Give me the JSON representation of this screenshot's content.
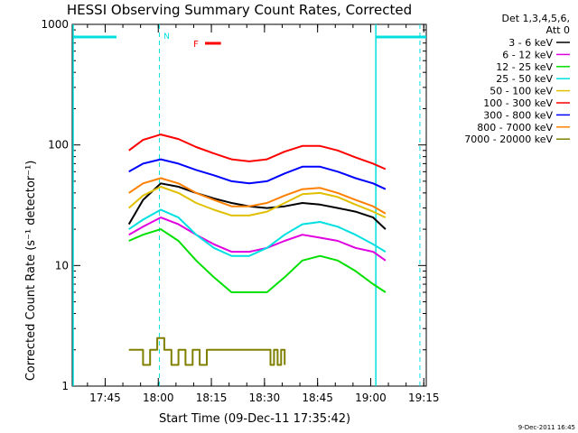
{
  "chart_data": {
    "type": "line",
    "title": "HESSI Observing Summary Count Rates, Corrected",
    "xlabel": "Start Time (09-Dec-11 17:35:42)",
    "ylabel": "Corrected Count Rate (s⁻¹ detector⁻¹)",
    "y_scale": "log",
    "ylim": [
      1,
      1000
    ],
    "x_unit": "minutes after 17:35:42",
    "xlim": [
      0,
      100
    ],
    "x_tick_labels": [
      "17:45",
      "18:00",
      "18:15",
      "18:30",
      "18:45",
      "19:00",
      "19:15"
    ],
    "x_tick_minutes": [
      9.3,
      24.3,
      39.3,
      54.3,
      69.3,
      84.3,
      99.3
    ],
    "y_tick_labels": [
      "1",
      "10",
      "100",
      "1000"
    ],
    "y_ticks": [
      1,
      10,
      100,
      1000
    ],
    "legend": {
      "header": [
        "Det 1,3,4,5,6,",
        "Att 0"
      ],
      "placement": "right"
    },
    "series": [
      {
        "name": "3 - 6 keV",
        "color": "#000000",
        "x": [
          16,
          20,
          25,
          30,
          35,
          40,
          45,
          50,
          55,
          60,
          65,
          70,
          75,
          80,
          85,
          88.5
        ],
        "values": [
          22,
          35,
          48,
          45,
          40,
          36,
          33,
          31,
          30,
          31,
          33,
          32,
          30,
          28,
          25,
          20
        ]
      },
      {
        "name": "6 - 12 keV",
        "color": "#e000e0",
        "x": [
          16,
          20,
          25,
          30,
          35,
          40,
          45,
          50,
          55,
          60,
          65,
          70,
          75,
          80,
          85,
          88.5
        ],
        "values": [
          18,
          21,
          25,
          22,
          18,
          15,
          13,
          13,
          14,
          16,
          18,
          17,
          16,
          14,
          13,
          11
        ]
      },
      {
        "name": "12 - 25 keV",
        "color": "#00e000",
        "x": [
          16,
          20,
          25,
          30,
          35,
          40,
          45,
          50,
          55,
          60,
          65,
          70,
          75,
          80,
          85,
          88.5
        ],
        "values": [
          16,
          18,
          20,
          16,
          11,
          8,
          6,
          6,
          6,
          8,
          11,
          12,
          11,
          9,
          7,
          6
        ]
      },
      {
        "name": "25 - 50 keV",
        "color": "#00e0e0",
        "x": [
          16,
          20,
          25,
          30,
          35,
          40,
          45,
          50,
          55,
          60,
          65,
          70,
          75,
          80,
          85,
          88.5
        ],
        "values": [
          20,
          24,
          29,
          25,
          18,
          14,
          12,
          12,
          14,
          18,
          22,
          23,
          21,
          18,
          15,
          13
        ]
      },
      {
        "name": "50 - 100 keV",
        "color": "#e0c000",
        "x": [
          16,
          20,
          25,
          30,
          35,
          40,
          45,
          50,
          55,
          60,
          65,
          70,
          75,
          80,
          85,
          88.5
        ],
        "values": [
          30,
          38,
          45,
          40,
          33,
          29,
          26,
          26,
          28,
          33,
          39,
          40,
          37,
          32,
          28,
          25
        ]
      },
      {
        "name": "100 - 300 keV",
        "color": "#ff0000",
        "x": [
          16,
          20,
          25,
          30,
          35,
          40,
          45,
          50,
          55,
          60,
          65,
          70,
          75,
          80,
          85,
          88.5
        ],
        "values": [
          90,
          110,
          122,
          112,
          96,
          85,
          76,
          73,
          76,
          88,
          98,
          98,
          90,
          79,
          70,
          63
        ]
      },
      {
        "name": "300 - 800 keV",
        "color": "#0000ff",
        "x": [
          16,
          20,
          25,
          30,
          35,
          40,
          45,
          50,
          55,
          60,
          65,
          70,
          75,
          80,
          85,
          88.5
        ],
        "values": [
          60,
          70,
          76,
          70,
          62,
          56,
          50,
          48,
          50,
          58,
          66,
          66,
          60,
          53,
          48,
          43
        ]
      },
      {
        "name": "800 - 7000 keV",
        "color": "#ff8000",
        "x": [
          16,
          20,
          25,
          30,
          35,
          40,
          45,
          50,
          55,
          60,
          65,
          70,
          75,
          80,
          85,
          88.5
        ],
        "values": [
          40,
          48,
          53,
          48,
          40,
          35,
          31,
          31,
          33,
          38,
          43,
          44,
          40,
          35,
          31,
          27
        ]
      },
      {
        "name": "7000 - 20000 keV",
        "color": "#808000",
        "x": [
          16,
          18,
          20,
          22,
          24,
          26,
          28,
          30,
          32,
          34,
          36,
          38,
          56,
          57,
          58,
          59,
          60
        ],
        "values": [
          2,
          2,
          1.5,
          2,
          2.5,
          2,
          1.5,
          2,
          1.5,
          2,
          1.5,
          2,
          1.5,
          2,
          1.5,
          2,
          1.5
        ]
      }
    ],
    "annotations": {
      "n_marker": "N",
      "f_marker": "F",
      "night_segments": [
        [
          0,
          12.5
        ],
        [
          85.5,
          100
        ]
      ],
      "night_dashed_x": [
        24.6,
        98.2
      ],
      "flare_bar_x": [
        37.5,
        42
      ]
    },
    "footer_date": "9-Dec-2011 16:45"
  }
}
